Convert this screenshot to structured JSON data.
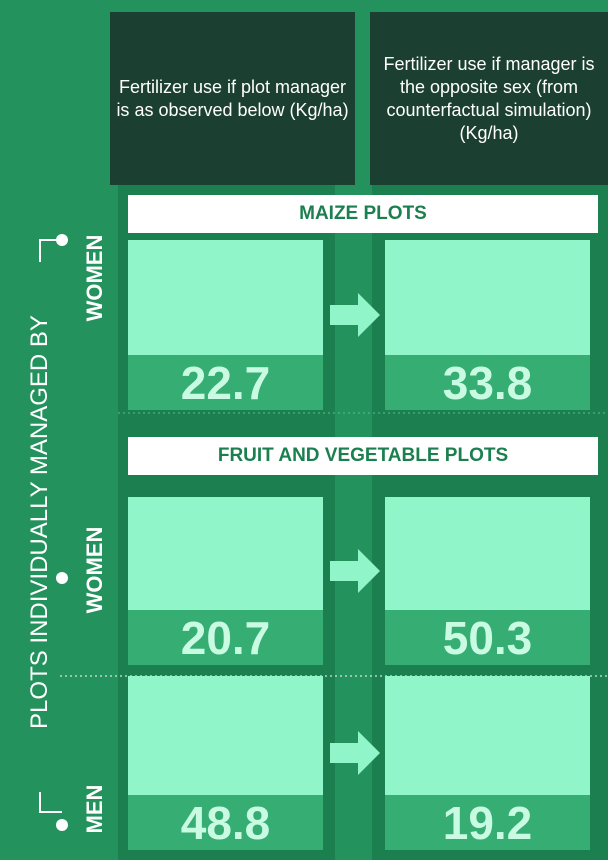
{
  "header": {
    "observed": "Fertilizer use if plot manager is as observed below (Kg/ha)",
    "counterfactual": "Fertilizer use if manager is the opposite sex (from counterfactual simulation) (Kg/ha)"
  },
  "side_label": "PLOTS INDIVIDUALLY MANAGED BY",
  "sections": [
    {
      "title": "MAIZE PLOTS",
      "rows": [
        {
          "manager": "WOMEN",
          "observed": 22.7,
          "counterfactual": 33.8
        }
      ]
    },
    {
      "title": "FRUIT AND VEGETABLE PLOTS",
      "rows": [
        {
          "manager": "WOMEN",
          "observed": 20.7,
          "counterfactual": 50.3
        },
        {
          "manager": "MEN",
          "observed": 48.8,
          "counterfactual": 19.2
        }
      ]
    }
  ]
}
